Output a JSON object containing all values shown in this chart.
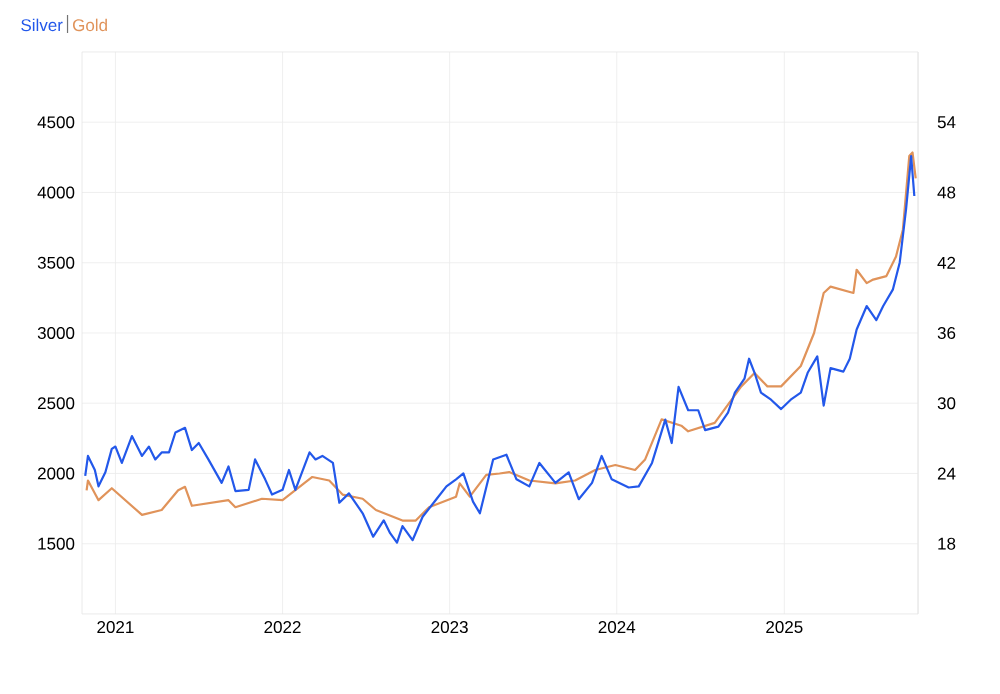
{
  "chart_data": {
    "type": "line",
    "legend": "top left",
    "grid": true,
    "xlim": [
      "2020-10-20",
      "2025-10-20"
    ],
    "xticks": [
      "2021",
      "2022",
      "2023",
      "2024",
      "2025"
    ],
    "ylim": [
      1000,
      5000
    ],
    "yticks": [
      1500,
      2000,
      2500,
      3000,
      3500,
      4000,
      4500
    ],
    "y2lim": [
      12,
      60
    ],
    "y2ticks": [
      18,
      24,
      30,
      36,
      42,
      48,
      54
    ],
    "series": [
      {
        "name": "Silver",
        "color": "#2358ea",
        "axis": "y2",
        "x": [
          "2020-10-27",
          "2020-11-02",
          "2020-11-17",
          "2020-11-25",
          "2020-12-10",
          "2020-12-24",
          "2021-01-01",
          "2021-01-15",
          "2021-02-06",
          "2021-02-28",
          "2021-03-15",
          "2021-03-29",
          "2021-04-12",
          "2021-04-28",
          "2021-05-12",
          "2021-06-02",
          "2021-06-17",
          "2021-07-02",
          "2021-07-23",
          "2021-08-21",
          "2021-09-05",
          "2021-09-20",
          "2021-10-19",
          "2021-11-02",
          "2021-11-24",
          "2021-12-09",
          "2022-01-01",
          "2022-01-15",
          "2022-01-29",
          "2022-03-01",
          "2022-03-14",
          "2022-03-29",
          "2022-04-21",
          "2022-05-05",
          "2022-05-26",
          "2022-06-25",
          "2022-07-18",
          "2022-08-10",
          "2022-08-24",
          "2022-09-08",
          "2022-09-20",
          "2022-10-12",
          "2022-11-03",
          "2022-12-03",
          "2022-12-25",
          "2023-01-15",
          "2023-01-31",
          "2023-02-21",
          "2023-03-08",
          "2023-04-06",
          "2023-05-05",
          "2023-05-27",
          "2023-06-24",
          "2023-07-16",
          "2023-08-20",
          "2023-09-18",
          "2023-10-10",
          "2023-11-08",
          "2023-11-29",
          "2023-12-21",
          "2024-01-27",
          "2024-02-18",
          "2024-03-18",
          "2024-04-16",
          "2024-04-30",
          "2024-05-15",
          "2024-06-05",
          "2024-06-27",
          "2024-07-12",
          "2024-08-10",
          "2024-08-31",
          "2024-09-15",
          "2024-10-06",
          "2024-10-16",
          "2024-10-28",
          "2024-11-11",
          "2024-12-03",
          "2024-12-25",
          "2025-01-15",
          "2025-02-06",
          "2025-02-21",
          "2025-03-14",
          "2025-03-28",
          "2025-04-12",
          "2025-05-10",
          "2025-05-24",
          "2025-06-08",
          "2025-06-30",
          "2025-07-21",
          "2025-08-05",
          "2025-08-26",
          "2025-09-10",
          "2025-09-24",
          "2025-10-05",
          "2025-10-12"
        ],
        "values": [
          23.8,
          25.5,
          24.3,
          22.9,
          24.1,
          26.1,
          26.3,
          24.9,
          27.2,
          25.5,
          26.3,
          25.2,
          25.8,
          25.8,
          27.5,
          27.9,
          26.0,
          26.6,
          25.2,
          23.2,
          24.6,
          22.5,
          22.6,
          25.2,
          23.5,
          22.2,
          22.6,
          24.3,
          22.6,
          25.8,
          25.2,
          25.5,
          24.9,
          21.5,
          22.3,
          20.6,
          18.6,
          20.0,
          18.9,
          18.1,
          19.5,
          18.3,
          20.3,
          21.8,
          22.9,
          23.5,
          24.0,
          21.6,
          20.6,
          25.2,
          25.6,
          23.5,
          22.9,
          24.9,
          23.2,
          24.1,
          21.8,
          23.2,
          25.5,
          23.5,
          22.8,
          22.9,
          24.9,
          28.6,
          26.6,
          31.4,
          29.4,
          29.4,
          27.7,
          28.0,
          29.2,
          30.9,
          32.1,
          33.8,
          32.6,
          30.9,
          30.3,
          29.5,
          30.3,
          30.9,
          32.6,
          34.0,
          29.8,
          33.0,
          32.7,
          33.8,
          36.3,
          38.3,
          37.1,
          38.3,
          39.7,
          42.0,
          46.6,
          51.1,
          47.7
        ]
      },
      {
        "name": "Gold",
        "color": "#e0935a",
        "x": [
          "2020-10-30",
          "2020-11-02",
          "2020-11-25",
          "2020-12-24",
          "2021-02-28",
          "2021-04-12",
          "2021-05-18",
          "2021-06-02",
          "2021-06-17",
          "2021-09-05",
          "2021-09-20",
          "2021-11-17",
          "2022-01-01",
          "2022-03-07",
          "2022-04-13",
          "2022-05-12",
          "2022-06-25",
          "2022-07-24",
          "2022-09-20",
          "2022-10-19",
          "2022-11-17",
          "2023-01-15",
          "2023-01-23",
          "2023-02-14",
          "2023-03-22",
          "2023-04-20",
          "2023-05-11",
          "2023-06-24",
          "2023-08-20",
          "2023-10-02",
          "2023-11-15",
          "2023-12-29",
          "2024-02-10",
          "2024-03-03",
          "2024-04-08",
          "2024-05-21",
          "2024-06-05",
          "2024-08-02",
          "2024-09-29",
          "2024-10-28",
          "2024-11-25",
          "2024-12-25",
          "2025-02-06",
          "2025-03-07",
          "2025-03-28",
          "2025-04-12",
          "2025-06-01",
          "2025-06-08",
          "2025-06-30",
          "2025-07-14",
          "2025-08-12",
          "2025-09-02",
          "2025-09-17",
          "2025-10-01",
          "2025-10-08",
          "2025-10-15"
        ],
        "values": [
          1880,
          1950,
          1810,
          1895,
          1705,
          1740,
          1880,
          1905,
          1770,
          1810,
          1760,
          1820,
          1810,
          1975,
          1950,
          1850,
          1820,
          1740,
          1665,
          1665,
          1760,
          1835,
          1930,
          1835,
          1990,
          2000,
          2010,
          1950,
          1930,
          1950,
          2025,
          2060,
          2025,
          2100,
          2385,
          2340,
          2300,
          2360,
          2620,
          2715,
          2620,
          2620,
          2765,
          3000,
          3285,
          3330,
          3285,
          3450,
          3355,
          3380,
          3405,
          3545,
          3735,
          4260,
          4285,
          4100
        ]
      }
    ]
  }
}
